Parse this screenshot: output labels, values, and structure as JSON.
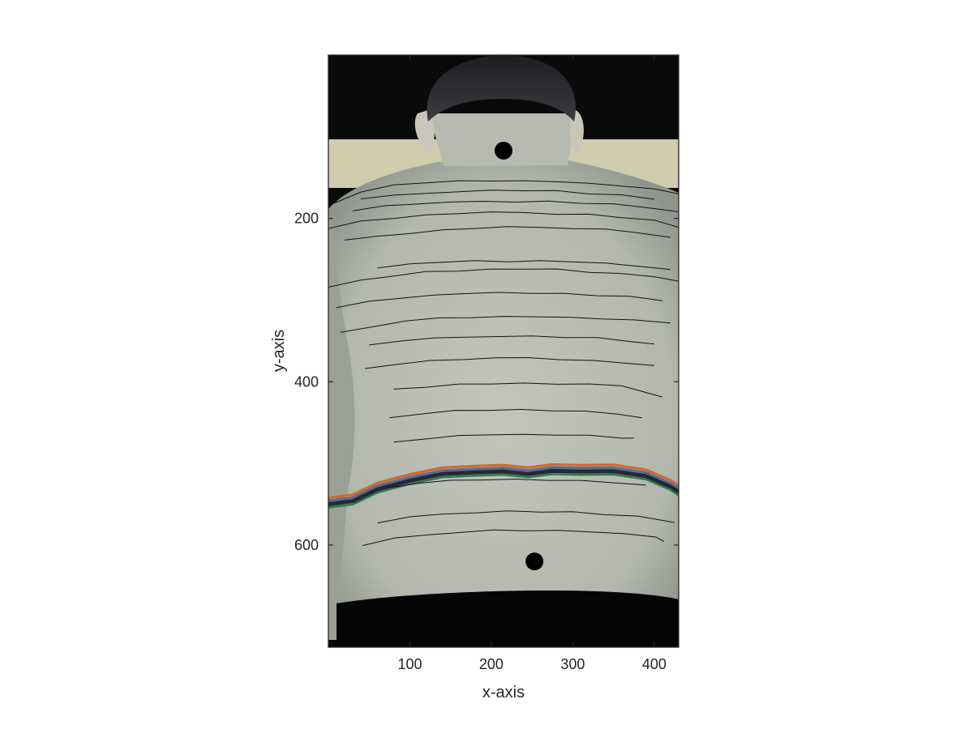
{
  "chart_data": {
    "type": "image",
    "xlabel": "x-axis",
    "ylabel": "y-axis",
    "xlim": [
      0,
      430
    ],
    "ylim": [
      0,
      725
    ],
    "y_direction": "reversed",
    "xticks": [
      100,
      200,
      300,
      400
    ],
    "yticks": [
      200,
      400,
      600
    ],
    "grid": false,
    "colors": {
      "background": "#0a0a0a",
      "wall": "#cfcdae",
      "skin": "#b9bcb2",
      "skin_shadow": "#8d938c",
      "marker": "#000000",
      "contour": "#111111",
      "band": [
        "#d2692a",
        "#5a6e8c",
        "#26283a",
        "#2e7a46"
      ]
    },
    "markers": [
      {
        "x": 215,
        "y": 117
      },
      {
        "x": 253,
        "y": 620
      }
    ],
    "contour_lines": [
      {
        "x": [
          0,
          40,
          80,
          120,
          160,
          200,
          240,
          280,
          320,
          360,
          400,
          430
        ],
        "y": [
          183,
          168,
          160,
          156,
          154,
          154,
          154,
          155,
          157,
          160,
          164,
          170
        ]
      },
      {
        "x": [
          40,
          80,
          120,
          160,
          200,
          240,
          280,
          320,
          360,
          400
        ],
        "y": [
          176,
          172,
          169,
          167,
          166,
          166,
          167,
          169,
          172,
          176
        ]
      },
      {
        "x": [
          30,
          70,
          110,
          150,
          190,
          230,
          270,
          310,
          350,
          390,
          430
        ],
        "y": [
          190,
          185,
          182,
          180,
          179,
          179,
          180,
          181,
          183,
          186,
          192
        ]
      },
      {
        "x": [
          0,
          40,
          80,
          120,
          160,
          200,
          240,
          280,
          320,
          360,
          400,
          430
        ],
        "y": [
          212,
          204,
          199,
          196,
          194,
          193,
          193,
          194,
          196,
          199,
          203,
          210
        ]
      },
      {
        "x": [
          20,
          60,
          100,
          140,
          180,
          220,
          260,
          300,
          340,
          380,
          420
        ],
        "y": [
          226,
          222,
          218,
          214,
          212,
          211,
          211,
          212,
          214,
          217,
          224
        ]
      },
      {
        "x": [
          60,
          100,
          140,
          180,
          220,
          260,
          300,
          340,
          380,
          420
        ],
        "y": [
          260,
          256,
          253,
          252,
          252,
          252,
          253,
          255,
          258,
          262
        ]
      },
      {
        "x": [
          0,
          40,
          80,
          120,
          160,
          200,
          240,
          280,
          320,
          360,
          400,
          430
        ],
        "y": [
          284,
          276,
          270,
          266,
          264,
          262,
          262,
          263,
          265,
          268,
          272,
          276
        ]
      },
      {
        "x": [
          10,
          50,
          90,
          130,
          170,
          210,
          250,
          290,
          330,
          370,
          410
        ],
        "y": [
          310,
          302,
          297,
          294,
          292,
          291,
          291,
          292,
          294,
          296,
          300
        ]
      },
      {
        "x": [
          15,
          55,
          95,
          135,
          175,
          215,
          255,
          295,
          335,
          375,
          420
        ],
        "y": [
          340,
          332,
          326,
          323,
          321,
          320,
          320,
          321,
          323,
          325,
          328
        ]
      },
      {
        "x": [
          50,
          90,
          130,
          170,
          210,
          250,
          290,
          330,
          370,
          400
        ],
        "y": [
          355,
          350,
          347,
          345,
          344,
          344,
          345,
          347,
          350,
          354
        ]
      },
      {
        "x": [
          45,
          85,
          125,
          165,
          205,
          245,
          285,
          325,
          365,
          400
        ],
        "y": [
          384,
          378,
          374,
          372,
          371,
          371,
          372,
          374,
          377,
          381
        ]
      },
      {
        "x": [
          80,
          120,
          160,
          200,
          240,
          280,
          320,
          360,
          410
        ],
        "y": [
          410,
          406,
          403,
          402,
          402,
          402,
          403,
          406,
          418
        ]
      },
      {
        "x": [
          75,
          115,
          155,
          195,
          235,
          275,
          315,
          355,
          385
        ],
        "y": [
          444,
          439,
          436,
          435,
          435,
          435,
          436,
          439,
          444
        ]
      },
      {
        "x": [
          80,
          120,
          160,
          200,
          240,
          280,
          320,
          360,
          375
        ],
        "y": [
          474,
          469,
          466,
          465,
          465,
          465,
          466,
          468,
          470
        ]
      },
      {
        "x": [
          70,
          110,
          150,
          190,
          230,
          270,
          310,
          350,
          390
        ],
        "y": [
          530,
          524,
          521,
          520,
          520,
          520,
          521,
          523,
          527
        ]
      },
      {
        "x": [
          60,
          100,
          140,
          180,
          220,
          260,
          300,
          340,
          380,
          425
        ],
        "y": [
          572,
          566,
          562,
          560,
          559,
          559,
          560,
          562,
          565,
          572
        ]
      },
      {
        "x": [
          42,
          82,
          122,
          162,
          202,
          242,
          282,
          322,
          362,
          402,
          412
        ],
        "y": [
          600,
          592,
          587,
          584,
          582,
          582,
          582,
          583,
          586,
          590,
          596
        ]
      }
    ],
    "band": {
      "x": [
        0,
        30,
        60,
        100,
        140,
        180,
        215,
        245,
        275,
        310,
        350,
        390,
        420,
        430
      ],
      "y": [
        542,
        538,
        525,
        513,
        506,
        503,
        502,
        505,
        502,
        501,
        502,
        508,
        520,
        528
      ]
    }
  }
}
